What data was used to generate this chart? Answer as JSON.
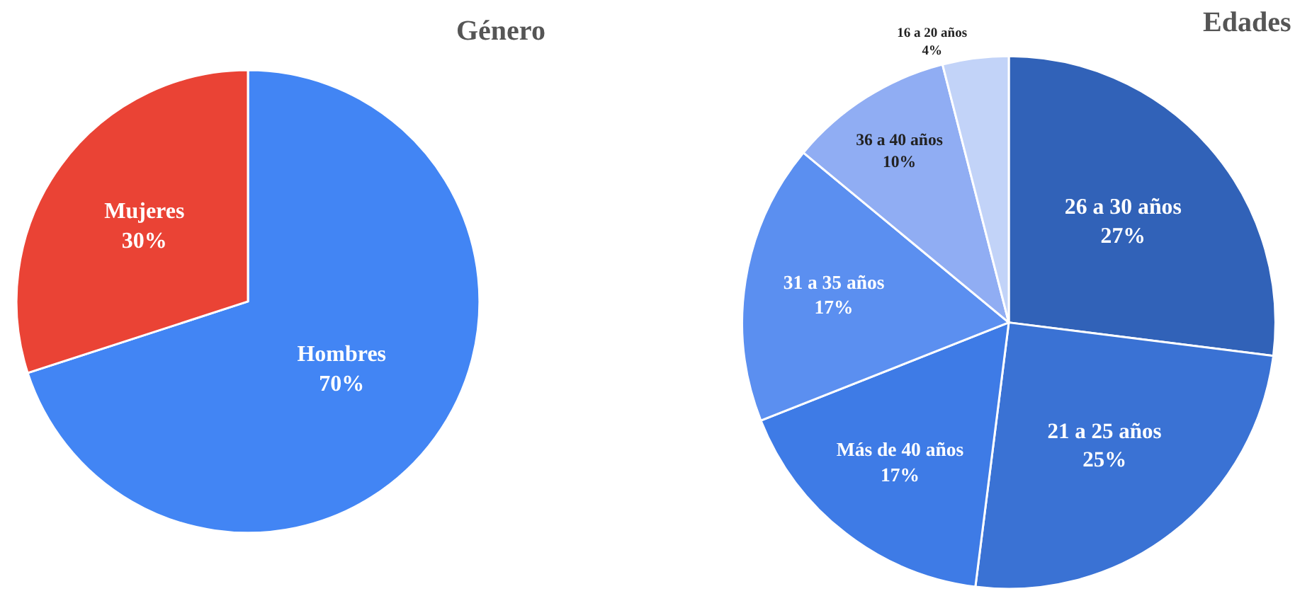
{
  "chart_data": [
    {
      "type": "pie",
      "title": "Género",
      "categories": [
        "Hombres",
        "Mujeres"
      ],
      "values": [
        70,
        30
      ],
      "value_labels": [
        "70%",
        "30%"
      ],
      "colors": [
        "#4285f4",
        "#ea4335"
      ]
    },
    {
      "type": "pie",
      "title": "Edades",
      "categories": [
        "26 a 30 años",
        "21 a 25 años",
        "Más de 40 años",
        "31 a 35 años",
        "36 a 40 años",
        "16 a 20 años"
      ],
      "values": [
        27,
        25,
        17,
        17,
        10,
        4
      ],
      "value_labels": [
        "27%",
        "25%",
        "17%",
        "17%",
        "10%",
        "4%"
      ],
      "colors": [
        "#3162b8",
        "#3a72d4",
        "#3e7be6",
        "#5b8ff0",
        "#90adf3",
        "#c2d3f8"
      ]
    }
  ]
}
